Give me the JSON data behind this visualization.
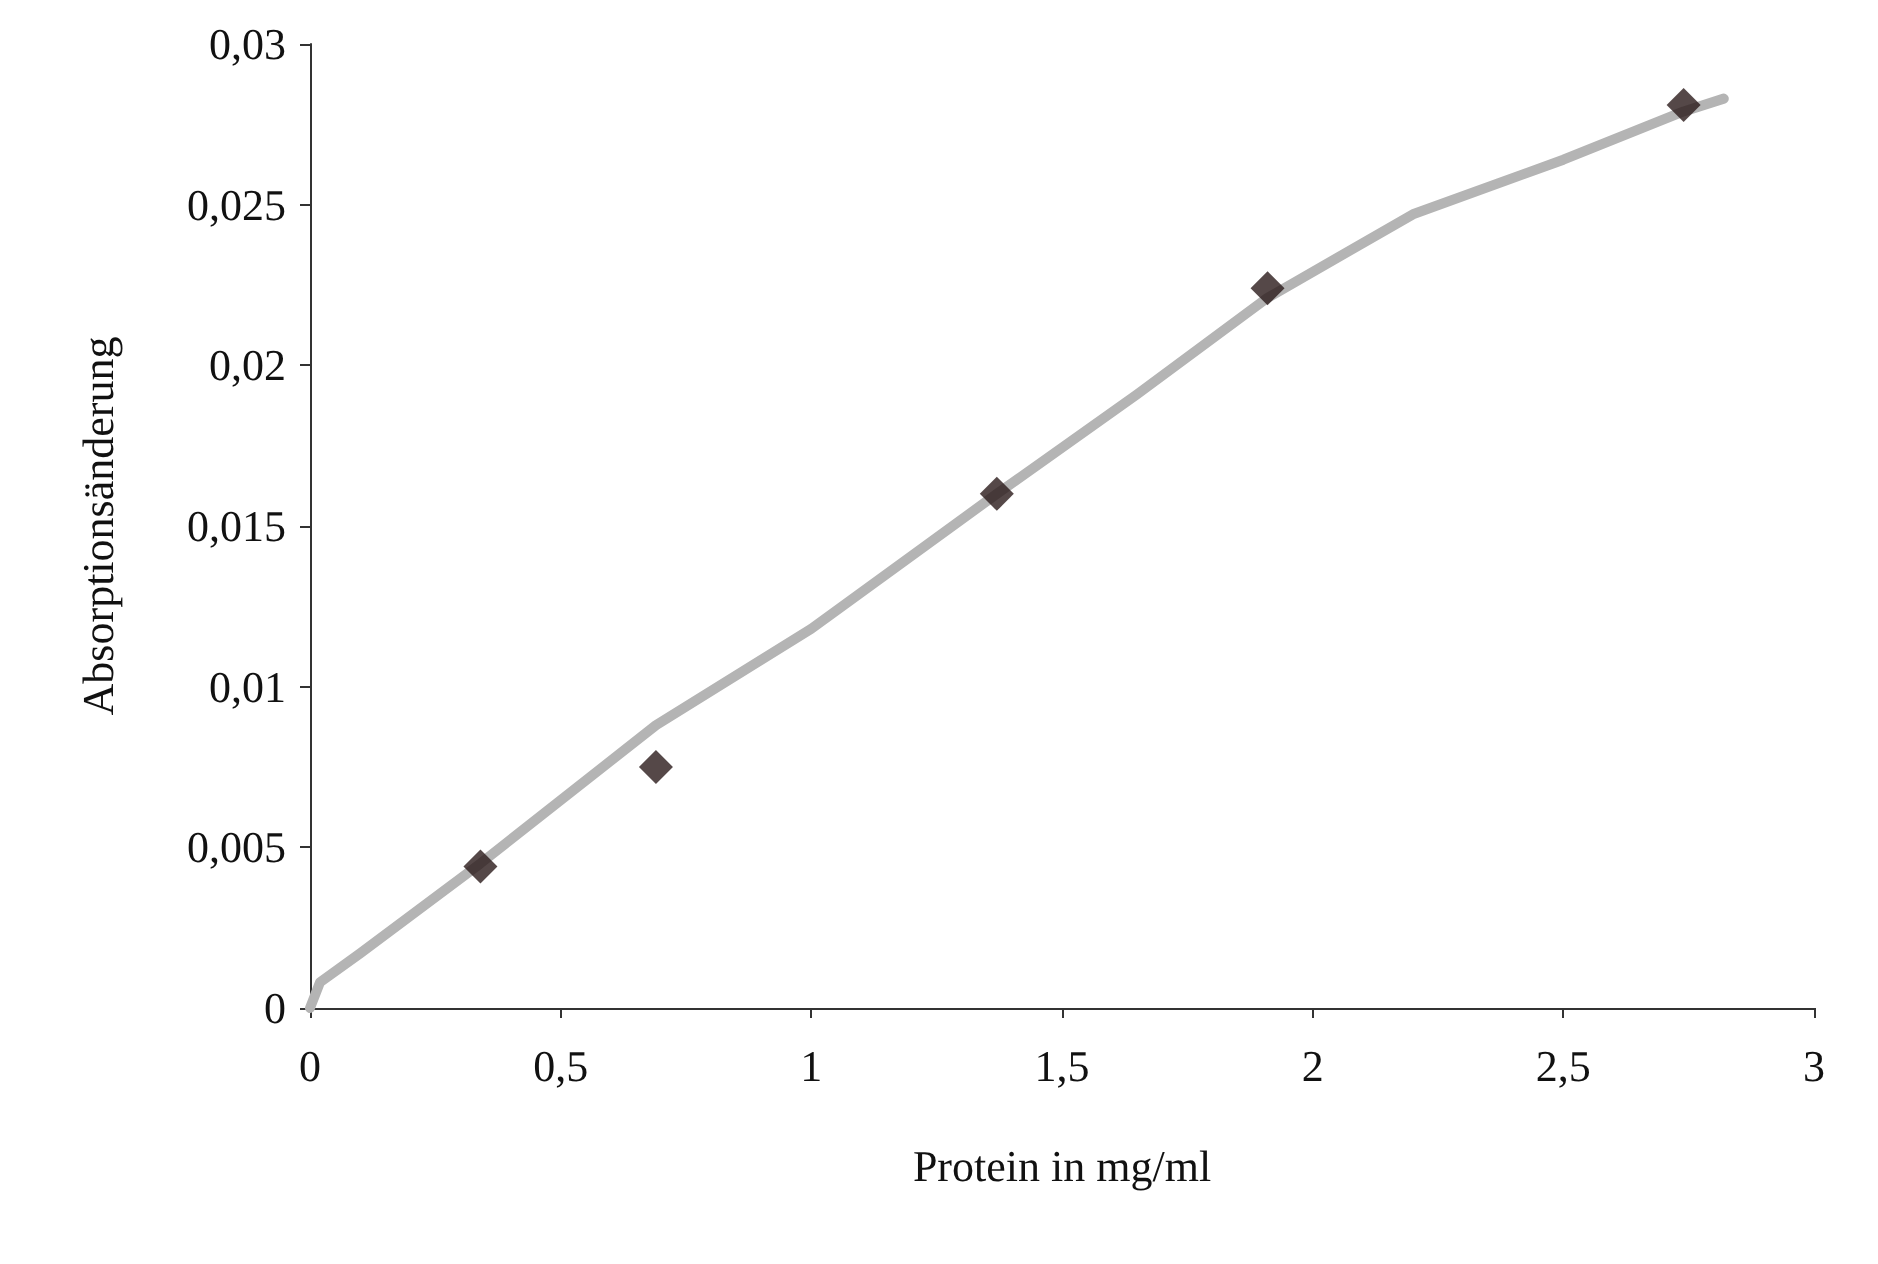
{
  "chart_data": {
    "type": "scatter",
    "xlabel": "Protein in mg/ml",
    "ylabel": "Absorptionsänderung",
    "xlim": [
      0,
      3
    ],
    "xticks": [
      {
        "value": 0,
        "label": "0"
      },
      {
        "value": 0.5,
        "label": "0,5"
      },
      {
        "value": 1,
        "label": "1"
      },
      {
        "value": 1.5,
        "label": "1,5"
      },
      {
        "value": 2,
        "label": "2"
      },
      {
        "value": 2.5,
        "label": "2,5"
      },
      {
        "value": 3,
        "label": "3"
      }
    ],
    "ylim": [
      0,
      0.03
    ],
    "yticks": [
      {
        "value": 0,
        "label": "0"
      },
      {
        "value": 0.005,
        "label": "0,005"
      },
      {
        "value": 0.01,
        "label": "0,01"
      },
      {
        "value": 0.015,
        "label": "0,015"
      },
      {
        "value": 0.02,
        "label": "0,02"
      },
      {
        "value": 0.025,
        "label": "0,025"
      },
      {
        "value": 0.03,
        "label": "0,03"
      }
    ],
    "grid": false,
    "series": [
      {
        "type": "line",
        "color": "#b4b4b4",
        "marker": "none",
        "line_style": "solid",
        "x": [
          0,
          0.02,
          0.1,
          0.34,
          0.69,
          1,
          1.37,
          1.65,
          1.91,
          2.2,
          2.5,
          2.74,
          2.82
        ],
        "values": [
          0,
          0.0008,
          0.0017,
          0.0045,
          0.0088,
          0.0118,
          0.016,
          0.0191,
          0.0221,
          0.0247,
          0.0264,
          0.0279,
          0.0283
        ]
      },
      {
        "color": "#2a1a1a",
        "marker": "diamond",
        "x": [
          0.34,
          0.69,
          1.37,
          1.91,
          2.74
        ],
        "values": [
          0.0044,
          0.0075,
          0.016,
          0.0224,
          0.0281
        ]
      }
    ]
  }
}
